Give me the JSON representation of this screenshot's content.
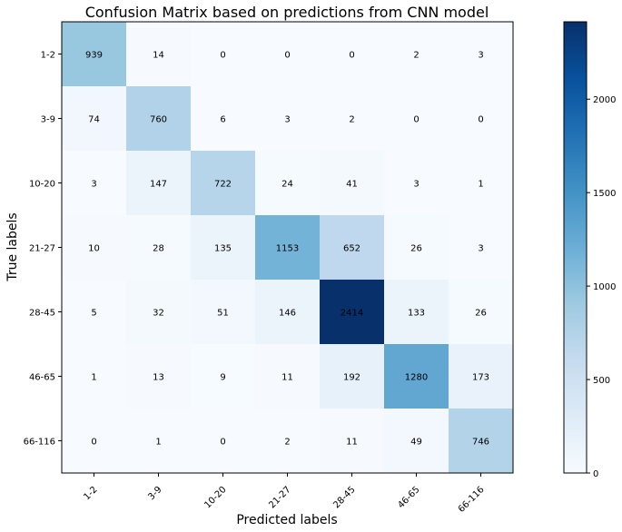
{
  "chart_data": {
    "type": "heatmap",
    "title": "Confusion Matrix based on predictions from CNN model",
    "xlabel": "Predicted labels",
    "ylabel": "True labels",
    "x_categories": [
      "1-2",
      "3-9",
      "10-20",
      "21-27",
      "28-45",
      "46-65",
      "66-116"
    ],
    "y_categories": [
      "1-2",
      "3-9",
      "10-20",
      "21-27",
      "28-45",
      "46-65",
      "66-116"
    ],
    "values": [
      [
        939,
        14,
        0,
        0,
        0,
        2,
        3
      ],
      [
        74,
        760,
        6,
        3,
        2,
        0,
        0
      ],
      [
        3,
        147,
        722,
        24,
        41,
        3,
        1
      ],
      [
        10,
        28,
        135,
        1153,
        652,
        26,
        3
      ],
      [
        5,
        32,
        51,
        146,
        2414,
        133,
        26
      ],
      [
        1,
        13,
        9,
        11,
        192,
        1280,
        173
      ],
      [
        0,
        1,
        0,
        2,
        11,
        49,
        746
      ]
    ],
    "colormap": "Blues",
    "colorbar": {
      "min": 0,
      "max": 2414,
      "ticks": [
        0,
        500,
        1000,
        1500,
        2000
      ]
    }
  }
}
